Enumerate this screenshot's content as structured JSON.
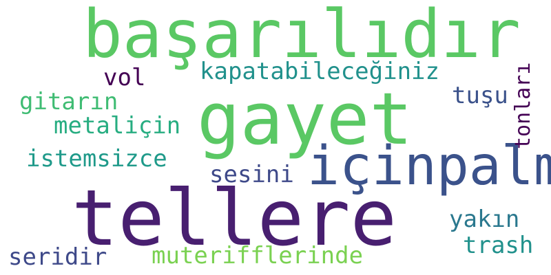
{
  "words": [
    {
      "text": "başarılıdır",
      "color": "#5ac864"
    },
    {
      "text": "gayet",
      "color": "#5ac864"
    },
    {
      "text": "içinpalm",
      "color": "#3b528b"
    },
    {
      "text": "tellere",
      "color": "#481f70"
    },
    {
      "text": "kapatabileceğiniz",
      "color": "#21918c"
    },
    {
      "text": "vol",
      "color": "#440154"
    },
    {
      "text": "gitarın",
      "color": "#3fbc73"
    },
    {
      "text": "metaliçin",
      "color": "#27ad81"
    },
    {
      "text": "istemsizce",
      "color": "#1f9a8a"
    },
    {
      "text": "sesini",
      "color": "#3e4989"
    },
    {
      "text": "tuşu",
      "color": "#3b528b"
    },
    {
      "text": "yakın",
      "color": "#2a788e"
    },
    {
      "text": "trash",
      "color": "#21918c"
    },
    {
      "text": "seridir",
      "color": "#3e4989"
    },
    {
      "text": "muterifflerinde",
      "color": "#7ad151"
    },
    {
      "text": "tonları",
      "color": "#440154"
    }
  ]
}
